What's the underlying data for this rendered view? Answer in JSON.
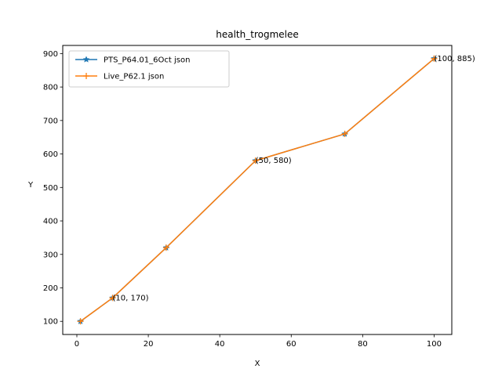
{
  "chart_data": {
    "type": "line",
    "title": "health_trogmelee",
    "xlabel": "X",
    "ylabel": "Y",
    "xlim": [
      -3.95,
      104.95
    ],
    "ylim": [
      60.75,
      924.25
    ],
    "xticks": [
      0,
      20,
      40,
      60,
      80,
      100
    ],
    "yticks": [
      100,
      200,
      300,
      400,
      500,
      600,
      700,
      800,
      900
    ],
    "grid": false,
    "legend_position": "top-left",
    "series": [
      {
        "name": "PTS_P64.01_6Oct json",
        "color": "#1f77b4",
        "marker": "star",
        "x": [
          1,
          10,
          25,
          50,
          75,
          100
        ],
        "y": [
          100,
          170,
          320,
          580,
          660,
          885
        ]
      },
      {
        "name": "Live_P62.1 json",
        "color": "#ff7f0e",
        "marker": "plus",
        "x": [
          1,
          10,
          25,
          50,
          75,
          100
        ],
        "y": [
          100,
          170,
          320,
          580,
          660,
          885
        ]
      }
    ],
    "annotations": [
      {
        "x": 10,
        "y": 170,
        "text": "(10, 170)"
      },
      {
        "x": 50,
        "y": 580,
        "text": "(50, 580)"
      },
      {
        "x": 100,
        "y": 885,
        "text": "(100, 885)"
      }
    ]
  }
}
